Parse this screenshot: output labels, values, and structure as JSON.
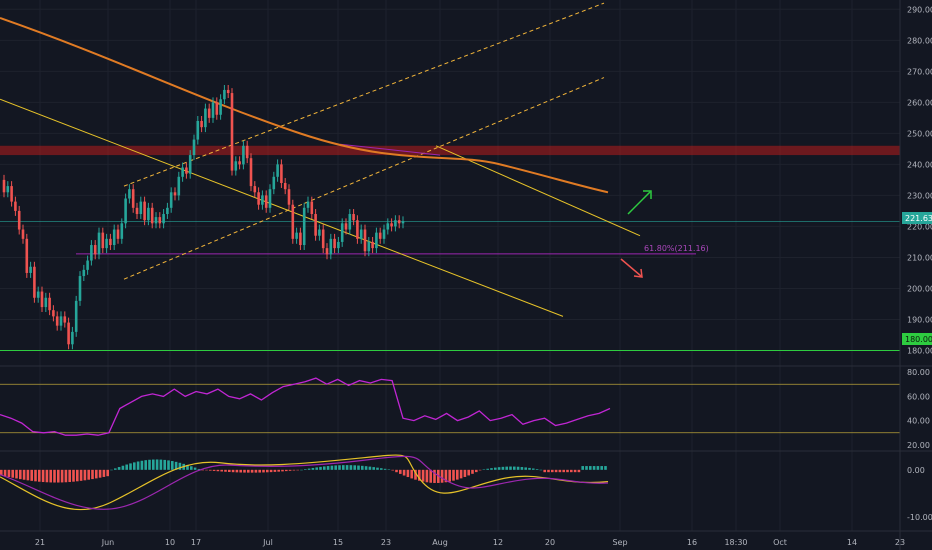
{
  "colors": {
    "background": "#131722",
    "grid": "#1e222d",
    "up": "#26a69a",
    "down": "#ef5350",
    "sma": "#e07b24",
    "trend": "#e6c229",
    "channel": "#f2b53a",
    "resistance_zone": "#b71c1c",
    "fib": "#9c27b0",
    "support": "#2ecc40",
    "current_price_line": "#26a69a",
    "rsi": "#c026d3",
    "macd_line": "#e6c229",
    "signal_line": "#9c27b0",
    "axis_text": "#b2b5be"
  },
  "price_axis": {
    "ticks": [
      "290.00",
      "280.00",
      "270.00",
      "260.00",
      "250.00",
      "240.00",
      "230.00",
      "220.00",
      "210.00",
      "200.00",
      "190.00",
      "180.00"
    ]
  },
  "rsi_axis": {
    "ticks": [
      "80.00",
      "60.00",
      "40.00",
      "20.00"
    ]
  },
  "macd_axis": {
    "ticks": [
      "0.00",
      "-10.00"
    ]
  },
  "time_axis": {
    "ticks": [
      "21",
      "Jun",
      "10",
      "17",
      "Jul",
      "15",
      "23",
      "Aug",
      "12",
      "20",
      "Sep",
      "16",
      "18:30",
      "Oct",
      "14",
      "23"
    ]
  },
  "annotations": {
    "fib_label": "61.80%(211.16)",
    "current_price_tag": "221.63",
    "support_tag": "180.00"
  },
  "chart_data": {
    "type": "candlestick",
    "ylim": [
      175,
      293
    ],
    "current_price": 221.63,
    "support_level": 180.0,
    "fib_level": 211.16,
    "resistance_zone": [
      243,
      246
    ],
    "rsi_levels": [
      70,
      30
    ],
    "rsi_ylim": [
      15,
      85
    ],
    "macd_ylim": [
      -13,
      4
    ],
    "n_bars": 106,
    "candles": [
      [
        235,
        231
      ],
      [
        231,
        233
      ],
      [
        233,
        228
      ],
      [
        228,
        225
      ],
      [
        225,
        219
      ],
      [
        219,
        216
      ],
      [
        216,
        205
      ],
      [
        205,
        207
      ],
      [
        207,
        197
      ],
      [
        197,
        199
      ],
      [
        199,
        194
      ],
      [
        194,
        197
      ],
      [
        197,
        193
      ],
      [
        193,
        191
      ],
      [
        191,
        188
      ],
      [
        188,
        191
      ],
      [
        191,
        189
      ],
      [
        189,
        182
      ],
      [
        182,
        186
      ],
      [
        186,
        196
      ],
      [
        196,
        204
      ],
      [
        204,
        206
      ],
      [
        206,
        209
      ],
      [
        209,
        214
      ],
      [
        214,
        211
      ],
      [
        211,
        218
      ],
      [
        218,
        213
      ],
      [
        213,
        216
      ],
      [
        216,
        214
      ],
      [
        214,
        219
      ],
      [
        219,
        216
      ],
      [
        216,
        221
      ],
      [
        221,
        229
      ],
      [
        229,
        232
      ],
      [
        232,
        226
      ],
      [
        226,
        224
      ],
      [
        224,
        228
      ],
      [
        228,
        222
      ],
      [
        222,
        226
      ],
      [
        226,
        221
      ],
      [
        221,
        223
      ],
      [
        223,
        221
      ],
      [
        221,
        224
      ],
      [
        224,
        226
      ],
      [
        226,
        231
      ],
      [
        231,
        230
      ],
      [
        230,
        236
      ],
      [
        236,
        239
      ],
      [
        239,
        237
      ],
      [
        237,
        243
      ],
      [
        243,
        248
      ],
      [
        248,
        254
      ],
      [
        254,
        252
      ],
      [
        252,
        258
      ],
      [
        258,
        255
      ],
      [
        255,
        260
      ],
      [
        260,
        256
      ],
      [
        256,
        261
      ],
      [
        261,
        264
      ],
      [
        264,
        263
      ],
      [
        263,
        238
      ],
      [
        238,
        241
      ],
      [
        241,
        240
      ],
      [
        240,
        246
      ],
      [
        246,
        242
      ],
      [
        242,
        233
      ],
      [
        233,
        231
      ],
      [
        231,
        227
      ],
      [
        227,
        230
      ],
      [
        230,
        226
      ],
      [
        226,
        232
      ],
      [
        232,
        236
      ],
      [
        236,
        240
      ],
      [
        240,
        234
      ],
      [
        234,
        232
      ],
      [
        232,
        227
      ],
      [
        227,
        216
      ],
      [
        216,
        218
      ],
      [
        218,
        214
      ],
      [
        214,
        226
      ],
      [
        226,
        228
      ],
      [
        228,
        224
      ],
      [
        224,
        217
      ],
      [
        217,
        219
      ],
      [
        219,
        213
      ],
      [
        213,
        211
      ],
      [
        211,
        216
      ],
      [
        216,
        213
      ],
      [
        213,
        215
      ],
      [
        215,
        221
      ],
      [
        221,
        219
      ],
      [
        219,
        224
      ],
      [
        224,
        222
      ],
      [
        222,
        216
      ],
      [
        216,
        219
      ],
      [
        219,
        212
      ],
      [
        212,
        215
      ],
      [
        215,
        213
      ],
      [
        213,
        218
      ],
      [
        218,
        216
      ],
      [
        216,
        219
      ],
      [
        219,
        221
      ],
      [
        221,
        220
      ],
      [
        220,
        222
      ],
      [
        222,
        221
      ],
      [
        221,
        221.63
      ]
    ],
    "sma": [
      300,
      270,
      244,
      231
    ],
    "rsi": [
      45,
      42,
      38,
      31,
      30,
      31,
      28,
      28,
      29,
      28,
      30,
      50,
      55,
      60,
      62,
      60,
      66,
      60,
      64,
      62,
      66,
      60,
      58,
      62,
      57,
      63,
      68,
      70,
      72,
      75,
      70,
      74,
      69,
      73,
      71,
      74,
      73,
      42,
      40,
      44,
      41,
      46,
      40,
      43,
      48,
      40,
      42,
      45,
      37,
      40,
      42,
      36,
      38,
      41,
      44,
      46,
      50
    ]
  }
}
